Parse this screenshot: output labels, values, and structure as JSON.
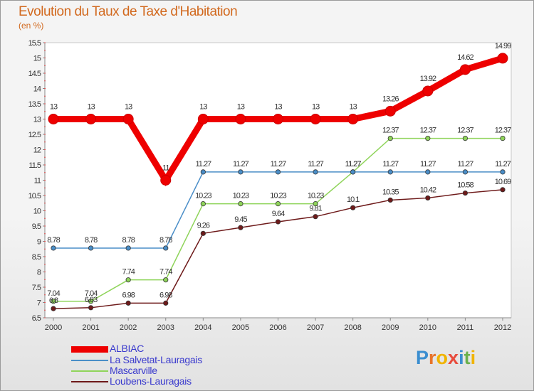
{
  "title": "Evolution du Taux de Taxe d'Habitation",
  "unit": "(en %)",
  "logo": {
    "text": "Proxiti",
    "letters": [
      "P",
      "r",
      "o",
      "x",
      "i",
      "t",
      "i"
    ],
    "colors": [
      "#3b8ed0",
      "#e8742a",
      "#f0b400",
      "#e84c3d",
      "#3b8ed0",
      "#6ab04c",
      "#f0b400"
    ]
  },
  "chart_data": {
    "type": "line",
    "title": "Evolution du Taux de Taxe d'Habitation",
    "ylabel": "(en %)",
    "xlabel": "",
    "ylim": [
      6.5,
      15.5
    ],
    "yticks": [
      "6.5",
      "7",
      "7.5",
      "8",
      "8.5",
      "9",
      "9.5",
      "10",
      "10.5",
      "11",
      "11.5",
      "12",
      "12.5",
      "13",
      "13.5",
      "14",
      "14.5",
      "15",
      "15.5"
    ],
    "x": [
      "2000",
      "2001",
      "2002",
      "2003",
      "2004",
      "2005",
      "2006",
      "2007",
      "2008",
      "2009",
      "2010",
      "2011",
      "2012"
    ],
    "grid": false,
    "series": [
      {
        "name": "ALBIAC",
        "color": "#ee0000",
        "values": [
          13,
          13,
          13,
          11,
          13,
          13,
          13,
          13,
          13,
          13.26,
          13.92,
          14.62,
          14.99
        ],
        "labels": [
          "13",
          "13",
          "13",
          "11",
          "13",
          "13",
          "13",
          "13",
          "13",
          "13.26",
          "13.92",
          "14.62",
          "14.99"
        ]
      },
      {
        "name": "La Salvetat-Lauragais",
        "color": "#4a8ec8",
        "values": [
          8.78,
          8.78,
          8.78,
          8.78,
          11.27,
          11.27,
          11.27,
          11.27,
          11.27,
          11.27,
          11.27,
          11.27,
          11.27
        ],
        "labels": [
          "8.78",
          "8.78",
          "8.78",
          "8.78",
          "11.27",
          "11.27",
          "11.27",
          "11.27",
          "11.27",
          "11.27",
          "11.27",
          "11.27",
          "11.27"
        ]
      },
      {
        "name": "Mascarville",
        "color": "#8fd45a",
        "values": [
          7.04,
          7.04,
          7.74,
          7.74,
          10.23,
          10.23,
          10.23,
          10.23,
          11.27,
          12.37,
          12.37,
          12.37,
          12.37
        ],
        "labels": [
          "7.04",
          "7.04",
          "7.74",
          "7.74",
          "10.23",
          "10.23",
          "10.23",
          "10.23",
          "11.27",
          "12.37",
          "12.37",
          "12.37",
          "12.37"
        ]
      },
      {
        "name": "Loubens-Lauragais",
        "color": "#6e1a1a",
        "values": [
          6.8,
          6.83,
          6.98,
          6.98,
          9.26,
          9.45,
          9.64,
          9.81,
          10.1,
          10.35,
          10.42,
          10.58,
          10.69
        ],
        "labels": [
          "6.8",
          "6.83",
          "6.98",
          "6.98",
          "9.26",
          "9.45",
          "9.64",
          "9.81",
          "10.1",
          "10.35",
          "10.42",
          "10.58",
          "10.69"
        ]
      }
    ]
  }
}
